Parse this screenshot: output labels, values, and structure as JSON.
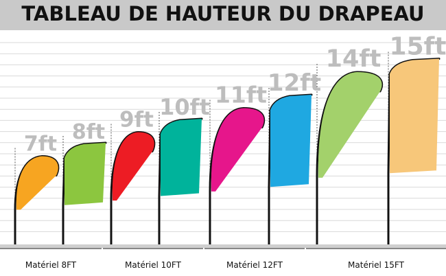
{
  "title": "TABLEAU DE HAUTEUR DU DRAPEAU",
  "colors": {
    "title_bg": "#c9c9c9",
    "grid": "#d9d9d9",
    "outline": "#111111",
    "height_label": "#bdbdbd",
    "base_band": "#cfcfcf"
  },
  "flags": [
    {
      "label": "7ft",
      "height_ft": 7,
      "shape": "teardrop",
      "color": "#f7a521"
    },
    {
      "label": "8ft",
      "height_ft": 8,
      "shape": "feather",
      "color": "#8cc63f"
    },
    {
      "label": "9ft",
      "height_ft": 9,
      "shape": "teardrop",
      "color": "#ed1c24"
    },
    {
      "label": "10ft",
      "height_ft": 10,
      "shape": "feather",
      "color": "#00b39b"
    },
    {
      "label": "11ft",
      "height_ft": 11,
      "shape": "teardrop",
      "color": "#e6168b"
    },
    {
      "label": "12ft",
      "height_ft": 12,
      "shape": "feather",
      "color": "#1fa8e1"
    },
    {
      "label": "14ft",
      "height_ft": 14,
      "shape": "teardrop",
      "color": "#a3d16b"
    },
    {
      "label": "15ft",
      "height_ft": 15,
      "shape": "feather",
      "color": "#f7c77a"
    }
  ],
  "materials": [
    {
      "label": "Matériel 8FT"
    },
    {
      "label": "Matériel 10FT"
    },
    {
      "label": "Matériel 12FT"
    },
    {
      "label": "Matériel 15FT"
    }
  ]
}
